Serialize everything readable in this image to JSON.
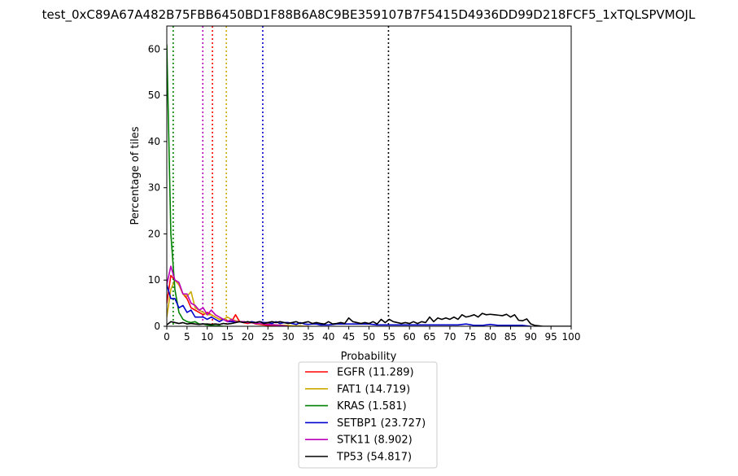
{
  "chart_data": {
    "type": "line",
    "title": "test_0xC89A67A482B75FBB6450BD1F88B6A8C9BE359107B7F5415D4936DD99D218FCF5_1xTQLSPVMOJL",
    "xlabel": "Probability",
    "ylabel": "Percentage of tiles",
    "xlim": [
      0,
      100
    ],
    "ylim": [
      0,
      65
    ],
    "xticks": [
      0,
      5,
      10,
      15,
      20,
      25,
      30,
      35,
      40,
      45,
      50,
      55,
      60,
      65,
      70,
      75,
      80,
      85,
      90,
      95,
      100
    ],
    "yticks": [
      0,
      10,
      20,
      30,
      40,
      50,
      60
    ],
    "grid": false,
    "legend_position": "below",
    "series": [
      {
        "name": "EGFR (11.289)",
        "color": "#ff0000",
        "threshold": 11.289,
        "x": [
          0,
          1,
          2,
          3,
          4,
          5,
          6,
          7,
          8,
          9,
          10,
          11,
          12,
          13,
          14,
          15,
          16,
          17,
          18,
          19,
          20,
          21,
          22,
          23,
          24,
          25,
          26,
          27,
          28,
          29,
          30,
          31,
          32,
          33,
          34,
          35
        ],
        "y": [
          5,
          11,
          10,
          9,
          7,
          6,
          4,
          3.5,
          3,
          2.5,
          3,
          2.5,
          2,
          1.5,
          1.5,
          1.2,
          1,
          2.5,
          1,
          0.8,
          0.6,
          0.8,
          0.5,
          0.4,
          0.3,
          0.2,
          0.2,
          0.1,
          0.1,
          0.1,
          0,
          0,
          0,
          0,
          0,
          0
        ]
      },
      {
        "name": "FAT1 (14.719)",
        "color": "#ccaa00",
        "threshold": 14.719,
        "x": [
          0,
          1,
          2,
          3,
          4,
          5,
          6,
          7,
          8,
          9,
          10,
          11,
          12,
          13,
          14,
          15,
          16,
          17,
          18,
          19,
          20,
          21,
          22,
          23,
          24,
          25,
          26,
          27,
          28,
          29,
          30,
          31,
          32,
          33,
          34,
          35
        ],
        "y": [
          2,
          8,
          10,
          9,
          7,
          6.5,
          7.5,
          4,
          3.5,
          3,
          2.5,
          2.5,
          2,
          1.5,
          1.5,
          2,
          1.5,
          1.2,
          1,
          1,
          0.8,
          0.8,
          0.6,
          0.5,
          0.5,
          0.5,
          0.4,
          0.3,
          0.3,
          0.2,
          0.2,
          0.1,
          0.1,
          0.1,
          0,
          0
        ]
      },
      {
        "name": "KRAS (1.581)",
        "color": "#008000",
        "threshold": 1.581,
        "x": [
          0,
          1,
          2,
          3,
          4,
          5,
          6,
          7,
          8,
          9,
          10,
          11,
          12,
          13,
          14,
          15
        ],
        "y": [
          61,
          20,
          8,
          3,
          1.5,
          1,
          0.8,
          1,
          0.5,
          0.5,
          0.3,
          0.2,
          0.1,
          0.1,
          0,
          0
        ]
      },
      {
        "name": "SETBP1 (23.727)",
        "color": "#0000cc",
        "threshold": 23.727,
        "x": [
          0,
          1,
          2,
          3,
          4,
          5,
          6,
          7,
          8,
          9,
          10,
          11,
          12,
          13,
          14,
          15,
          16,
          17,
          18,
          19,
          20,
          21,
          22,
          23,
          24,
          25,
          26,
          27,
          28,
          29,
          30,
          31,
          32,
          33,
          34,
          35,
          36,
          37,
          38,
          39,
          40,
          42,
          44,
          46,
          48,
          50,
          52,
          54,
          56,
          58,
          60,
          62,
          64,
          66,
          68,
          70,
          72,
          74,
          76,
          78,
          80,
          82,
          84,
          86,
          88,
          90
        ],
        "y": [
          9,
          6,
          6,
          4,
          4.5,
          3,
          3.5,
          2,
          2,
          2,
          1.5,
          2,
          1.5,
          1,
          1.5,
          1,
          1,
          1,
          1,
          1,
          0.8,
          1,
          0.8,
          1,
          0.8,
          0.8,
          0.6,
          1,
          0.6,
          0.8,
          0.8,
          0.6,
          0.4,
          0.8,
          0.5,
          0.4,
          0.5,
          0.5,
          0.3,
          0.3,
          0.3,
          0.5,
          0.5,
          0.5,
          0.5,
          0.5,
          0.3,
          0.3,
          0.3,
          0.3,
          0.3,
          0.3,
          0.3,
          0.3,
          0.3,
          0.3,
          0.3,
          0.5,
          0.2,
          0.2,
          0.4,
          0.2,
          0.2,
          0.2,
          0.2,
          0
        ]
      },
      {
        "name": "STK11 (8.902)",
        "color": "#bb00bb",
        "threshold": 8.902,
        "x": [
          0,
          1,
          2,
          3,
          4,
          5,
          6,
          7,
          8,
          9,
          10,
          11,
          12,
          13,
          14,
          15,
          16,
          17,
          18,
          19,
          20,
          21,
          22,
          23,
          24,
          25,
          26,
          27,
          28,
          29,
          30
        ],
        "y": [
          9,
          13,
          10,
          9.5,
          7,
          7,
          5,
          4.5,
          3.5,
          4,
          2.5,
          3.5,
          2.5,
          2,
          1.5,
          1,
          1.5,
          1,
          1,
          1,
          0.8,
          0.8,
          0.6,
          0.6,
          0.5,
          0.4,
          0.3,
          0.3,
          0.2,
          0.1,
          0
        ]
      },
      {
        "name": "TP53 (54.817)",
        "color": "#000000",
        "threshold": 54.817,
        "x": [
          0,
          1,
          2,
          3,
          4,
          5,
          6,
          7,
          8,
          9,
          10,
          11,
          12,
          13,
          14,
          15,
          16,
          17,
          18,
          19,
          20,
          21,
          22,
          23,
          24,
          25,
          26,
          27,
          28,
          29,
          30,
          31,
          32,
          33,
          34,
          35,
          36,
          37,
          38,
          39,
          40,
          41,
          42,
          43,
          44,
          45,
          46,
          47,
          48,
          49,
          50,
          51,
          52,
          53,
          54,
          55,
          56,
          57,
          58,
          59,
          60,
          61,
          62,
          63,
          64,
          65,
          66,
          67,
          68,
          69,
          70,
          71,
          72,
          73,
          74,
          75,
          76,
          77,
          78,
          79,
          80,
          81,
          82,
          83,
          84,
          85,
          86,
          87,
          88,
          89,
          90,
          91,
          92,
          93,
          94,
          95,
          96,
          97,
          98,
          99,
          100
        ],
        "y": [
          0.3,
          1,
          0.8,
          0.6,
          0.8,
          0.5,
          0.6,
          0.5,
          0.4,
          0.5,
          0.5,
          0.4,
          0.5,
          0.4,
          0.6,
          0.5,
          0.6,
          0.8,
          1,
          0.8,
          1,
          0.8,
          0.8,
          1,
          0.6,
          0.8,
          1,
          0.8,
          1,
          0.8,
          0.6,
          0.8,
          1,
          0.6,
          0.8,
          1,
          0.6,
          0.8,
          0.6,
          0.5,
          1,
          0.5,
          0.6,
          0.8,
          0.6,
          1.8,
          1,
          0.8,
          0.6,
          0.8,
          0.6,
          1,
          0.5,
          1.5,
          0.8,
          1.5,
          1,
          0.8,
          0.6,
          0.8,
          0.6,
          1,
          0.6,
          1,
          0.8,
          2,
          1,
          1.8,
          1.5,
          1.8,
          1.5,
          2,
          1.5,
          2.5,
          2,
          2.2,
          2.5,
          2,
          2.8,
          2.5,
          2.6,
          2.5,
          2.4,
          2.3,
          2.6,
          2,
          2.5,
          1.3,
          1.2,
          1.6,
          0.5,
          0.2,
          0.1,
          0,
          0,
          0,
          0,
          0,
          0,
          0,
          0
        ]
      }
    ]
  }
}
